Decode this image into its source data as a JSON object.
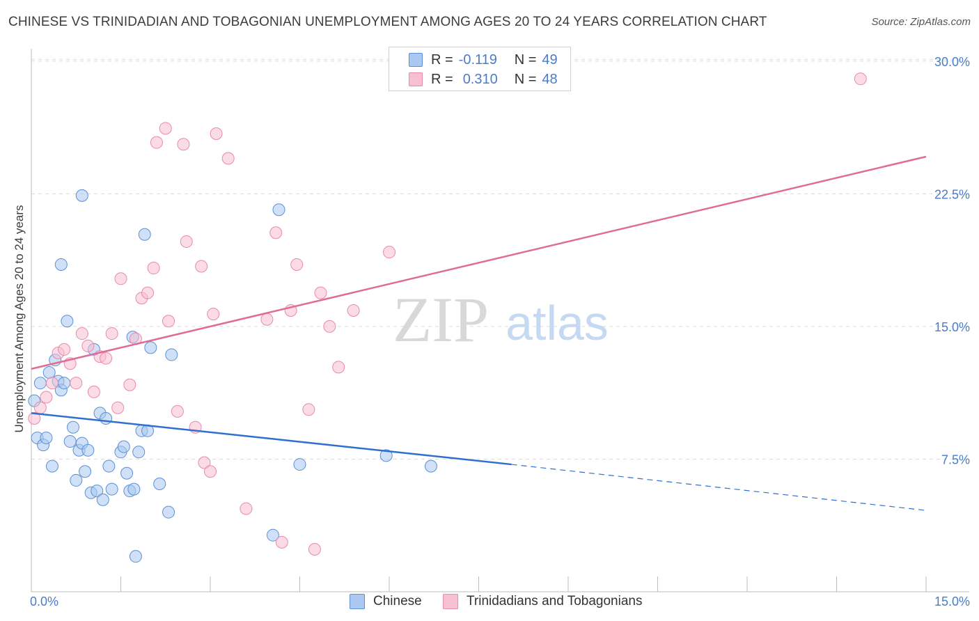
{
  "header": {
    "title": "CHINESE VS TRINIDADIAN AND TOBAGONIAN UNEMPLOYMENT AMONG AGES 20 TO 24 YEARS CORRELATION CHART",
    "source": "Source: ZipAtlas.com"
  },
  "watermark": {
    "zip": "ZIP",
    "atlas": "atlas"
  },
  "legend": {
    "rows": [
      {
        "r_label": "R =",
        "r_value": "-0.119",
        "n_label": "N =",
        "n_value": "49"
      },
      {
        "r_label": "R =",
        "r_value": "0.310",
        "n_label": "N =",
        "n_value": "48"
      }
    ]
  },
  "bottom_legend": {
    "items": [
      {
        "label": "Chinese"
      },
      {
        "label": "Trinidadians and Tobagonians"
      }
    ]
  },
  "colors": {
    "chinese_fill": "#aac8f0",
    "chinese_stroke": "#5b8fd6",
    "chinese_line": "#2f6fd0",
    "trinidad_fill": "#f7bfd2",
    "trinidad_stroke": "#e88aaa",
    "trinidad_line": "#e06b94",
    "tick_label": "#4a7cc9"
  },
  "chart_data": {
    "type": "scatter",
    "title": "CHINESE VS TRINIDADIAN AND TOBAGONIAN UNEMPLOYMENT AMONG AGES 20 TO 24 YEARS CORRELATION CHART",
    "xlabel": "",
    "ylabel": "Unemployment Among Ages 20 to 24 years",
    "xlim": [
      0,
      15
    ],
    "ylim": [
      0,
      30.7
    ],
    "x_tick_labels": [
      "0.0%",
      "15.0%"
    ],
    "y_ticks": [
      7.5,
      15.0,
      22.5,
      30.0
    ],
    "y_tick_labels": [
      "7.5%",
      "15.0%",
      "22.5%",
      "30.0%"
    ],
    "grid": "horizontal dashed",
    "series": [
      {
        "name": "Chinese",
        "r": -0.119,
        "n": 49,
        "trend": {
          "x": [
            0,
            8.05
          ],
          "y": [
            10.1,
            7.2
          ],
          "dashed_to": [
            15,
            4.6
          ]
        },
        "points": [
          [
            0.05,
            10.8
          ],
          [
            0.1,
            8.7
          ],
          [
            0.15,
            11.8
          ],
          [
            0.2,
            8.3
          ],
          [
            0.25,
            8.7
          ],
          [
            0.3,
            12.4
          ],
          [
            0.35,
            7.1
          ],
          [
            0.4,
            13.1
          ],
          [
            0.45,
            11.9
          ],
          [
            0.5,
            11.4
          ],
          [
            0.5,
            18.5
          ],
          [
            0.55,
            11.8
          ],
          [
            0.6,
            15.3
          ],
          [
            0.65,
            8.5
          ],
          [
            0.7,
            9.3
          ],
          [
            0.75,
            6.3
          ],
          [
            0.8,
            8.0
          ],
          [
            0.85,
            8.4
          ],
          [
            0.85,
            22.4
          ],
          [
            0.9,
            6.8
          ],
          [
            0.95,
            8.0
          ],
          [
            1.0,
            5.6
          ],
          [
            1.05,
            13.7
          ],
          [
            1.1,
            5.7
          ],
          [
            1.15,
            10.1
          ],
          [
            1.2,
            5.2
          ],
          [
            1.25,
            9.8
          ],
          [
            1.3,
            7.1
          ],
          [
            1.35,
            5.8
          ],
          [
            1.5,
            7.9
          ],
          [
            1.55,
            8.2
          ],
          [
            1.6,
            6.7
          ],
          [
            1.65,
            5.7
          ],
          [
            1.7,
            14.4
          ],
          [
            1.72,
            5.8
          ],
          [
            1.75,
            2.0
          ],
          [
            1.8,
            7.9
          ],
          [
            1.85,
            9.1
          ],
          [
            1.9,
            20.2
          ],
          [
            1.95,
            9.1
          ],
          [
            2.0,
            13.8
          ],
          [
            2.15,
            6.1
          ],
          [
            2.3,
            4.5
          ],
          [
            2.35,
            13.4
          ],
          [
            4.05,
            3.2
          ],
          [
            4.15,
            21.6
          ],
          [
            4.5,
            7.2
          ],
          [
            5.95,
            7.7
          ],
          [
            6.7,
            7.1
          ]
        ]
      },
      {
        "name": "Trinidadians and Tobagonians",
        "r": 0.31,
        "n": 48,
        "trend": {
          "x": [
            0,
            15
          ],
          "y": [
            12.6,
            24.6
          ]
        },
        "points": [
          [
            0.05,
            9.8
          ],
          [
            0.15,
            10.4
          ],
          [
            0.25,
            11.0
          ],
          [
            0.35,
            11.8
          ],
          [
            0.45,
            13.5
          ],
          [
            0.55,
            13.7
          ],
          [
            0.65,
            12.9
          ],
          [
            0.75,
            11.8
          ],
          [
            0.85,
            14.6
          ],
          [
            0.95,
            13.9
          ],
          [
            1.05,
            11.3
          ],
          [
            1.15,
            13.3
          ],
          [
            1.25,
            13.2
          ],
          [
            1.35,
            14.6
          ],
          [
            1.45,
            10.4
          ],
          [
            1.5,
            17.7
          ],
          [
            1.65,
            11.7
          ],
          [
            1.75,
            14.3
          ],
          [
            1.85,
            16.6
          ],
          [
            1.95,
            16.9
          ],
          [
            2.05,
            18.3
          ],
          [
            2.1,
            25.4
          ],
          [
            2.25,
            26.2
          ],
          [
            2.3,
            15.3
          ],
          [
            2.45,
            10.2
          ],
          [
            2.55,
            25.3
          ],
          [
            2.6,
            19.8
          ],
          [
            2.75,
            9.3
          ],
          [
            2.85,
            18.4
          ],
          [
            2.9,
            7.3
          ],
          [
            3.0,
            6.8
          ],
          [
            3.05,
            15.7
          ],
          [
            3.1,
            25.9
          ],
          [
            3.3,
            24.5
          ],
          [
            3.6,
            4.7
          ],
          [
            3.95,
            15.4
          ],
          [
            4.1,
            20.3
          ],
          [
            4.2,
            2.8
          ],
          [
            4.35,
            15.9
          ],
          [
            4.45,
            18.5
          ],
          [
            4.65,
            10.3
          ],
          [
            4.75,
            2.4
          ],
          [
            4.85,
            16.9
          ],
          [
            5.0,
            15.0
          ],
          [
            5.15,
            12.7
          ],
          [
            5.4,
            15.9
          ],
          [
            6.0,
            19.2
          ],
          [
            13.9,
            29.0
          ]
        ]
      }
    ]
  }
}
